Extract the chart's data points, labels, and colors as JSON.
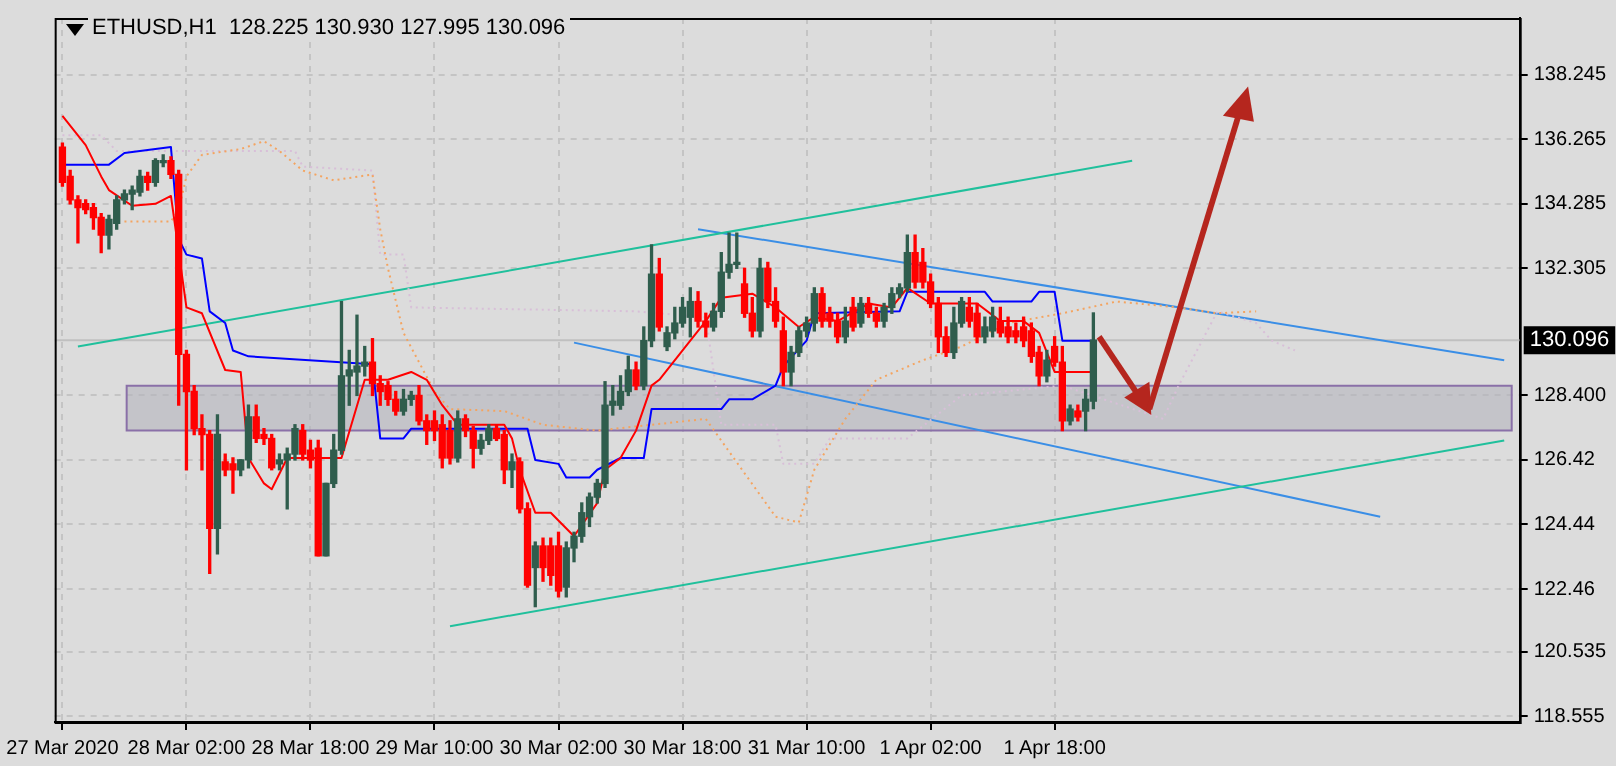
{
  "chart_data": {
    "type": "candlestick",
    "title": "ETHUSD,H1  128.225 130.930 127.995 130.096",
    "x": [
      "2020-03-27T10:00",
      "2020-03-27T11:00",
      "2020-03-27T12:00",
      "2020-03-27T13:00",
      "2020-03-27T14:00",
      "2020-03-27T15:00",
      "2020-03-27T16:00",
      "2020-03-27T17:00",
      "2020-03-27T18:00",
      "2020-03-27T19:00",
      "2020-03-27T20:00",
      "2020-03-27T21:00",
      "2020-03-27T22:00",
      "2020-03-27T23:00",
      "2020-03-28T00:00",
      "2020-03-28T01:00",
      "2020-03-28T02:00",
      "2020-03-28T03:00",
      "2020-03-28T04:00",
      "2020-03-28T05:00",
      "2020-03-28T06:00",
      "2020-03-28T07:00",
      "2020-03-28T08:00",
      "2020-03-28T09:00",
      "2020-03-28T10:00",
      "2020-03-28T11:00",
      "2020-03-28T12:00",
      "2020-03-28T13:00",
      "2020-03-28T14:00",
      "2020-03-28T15:00",
      "2020-03-28T16:00",
      "2020-03-28T17:00",
      "2020-03-28T18:00",
      "2020-03-28T19:00",
      "2020-03-28T20:00",
      "2020-03-28T21:00",
      "2020-03-28T22:00",
      "2020-03-28T23:00",
      "2020-03-29T00:00",
      "2020-03-29T01:00",
      "2020-03-29T02:00",
      "2020-03-29T03:00",
      "2020-03-29T04:00",
      "2020-03-29T05:00",
      "2020-03-29T06:00",
      "2020-03-29T07:00",
      "2020-03-29T08:00",
      "2020-03-29T09:00",
      "2020-03-29T10:00",
      "2020-03-29T11:00",
      "2020-03-29T12:00",
      "2020-03-29T13:00",
      "2020-03-29T14:00",
      "2020-03-29T15:00",
      "2020-03-29T16:00",
      "2020-03-29T17:00",
      "2020-03-29T18:00",
      "2020-03-29T19:00",
      "2020-03-29T20:00",
      "2020-03-29T21:00",
      "2020-03-29T22:00",
      "2020-03-29T23:00",
      "2020-03-30T00:00",
      "2020-03-30T01:00",
      "2020-03-30T02:00",
      "2020-03-30T03:00",
      "2020-03-30T04:00",
      "2020-03-30T05:00",
      "2020-03-30T06:00",
      "2020-03-30T07:00",
      "2020-03-30T08:00",
      "2020-03-30T09:00",
      "2020-03-30T10:00",
      "2020-03-30T11:00",
      "2020-03-30T12:00",
      "2020-03-30T13:00",
      "2020-03-30T14:00",
      "2020-03-30T15:00",
      "2020-03-30T16:00",
      "2020-03-30T17:00",
      "2020-03-30T18:00",
      "2020-03-30T19:00",
      "2020-03-30T20:00",
      "2020-03-30T21:00",
      "2020-03-30T22:00",
      "2020-03-30T23:00",
      "2020-03-31T00:00",
      "2020-03-31T01:00",
      "2020-03-31T02:00",
      "2020-03-31T03:00",
      "2020-03-31T04:00",
      "2020-03-31T05:00",
      "2020-03-31T06:00",
      "2020-03-31T07:00",
      "2020-03-31T08:00",
      "2020-03-31T09:00",
      "2020-03-31T10:00",
      "2020-03-31T11:00",
      "2020-03-31T12:00",
      "2020-03-31T13:00",
      "2020-03-31T14:00",
      "2020-03-31T15:00",
      "2020-03-31T16:00",
      "2020-03-31T17:00",
      "2020-03-31T18:00",
      "2020-03-31T19:00",
      "2020-03-31T20:00",
      "2020-03-31T21:00",
      "2020-03-31T22:00",
      "2020-03-31T23:00",
      "2020-04-01T00:00",
      "2020-04-01T01:00",
      "2020-04-01T02:00",
      "2020-04-01T03:00",
      "2020-04-01T04:00",
      "2020-04-01T05:00",
      "2020-04-01T06:00",
      "2020-04-01T07:00",
      "2020-04-01T08:00",
      "2020-04-01T09:00",
      "2020-04-01T10:00",
      "2020-04-01T11:00",
      "2020-04-01T12:00",
      "2020-04-01T13:00",
      "2020-04-01T14:00",
      "2020-04-01T15:00",
      "2020-04-01T16:00",
      "2020-04-01T17:00",
      "2020-04-01T18:00",
      "2020-04-01T19:00",
      "2020-04-01T20:00",
      "2020-04-01T21:00",
      "2020-04-01T22:00",
      "2020-04-01T23:00"
    ],
    "ohlc": [
      [
        136.02,
        136.14,
        134.82,
        134.94
      ],
      [
        135.12,
        135.3,
        134.28,
        134.4
      ],
      [
        134.4,
        134.52,
        133.08,
        134.16
      ],
      [
        134.28,
        134.4,
        133.98,
        134.1
      ],
      [
        134.16,
        134.28,
        133.5,
        133.86
      ],
      [
        133.86,
        133.98,
        132.78,
        133.32
      ],
      [
        133.32,
        133.92,
        132.9,
        133.8
      ],
      [
        133.68,
        134.52,
        133.5,
        134.4
      ],
      [
        134.4,
        134.7,
        134.28,
        134.58
      ],
      [
        134.58,
        134.82,
        134.1,
        134.7
      ],
      [
        134.64,
        135.3,
        134.52,
        135.12
      ],
      [
        135.12,
        135.24,
        134.7,
        134.94
      ],
      [
        134.94,
        135.66,
        134.82,
        135.6
      ],
      [
        135.54,
        135.78,
        135.42,
        135.6
      ],
      [
        135.6,
        135.72,
        135.06,
        135.18
      ],
      [
        135.18,
        135.3,
        128.1,
        129.66
      ],
      [
        129.66,
        129.78,
        126.12,
        128.52
      ],
      [
        128.52,
        128.7,
        127.2,
        127.38
      ],
      [
        127.38,
        127.8,
        126.12,
        127.2
      ],
      [
        127.2,
        127.32,
        122.94,
        124.32
      ],
      [
        124.32,
        127.8,
        123.54,
        127.2
      ],
      [
        126.36,
        126.6,
        125.94,
        126.12
      ],
      [
        126.3,
        126.48,
        125.4,
        126.12
      ],
      [
        126.12,
        126.42,
        125.94,
        126.42
      ],
      [
        126.42,
        128.1,
        126.18,
        127.74
      ],
      [
        127.74,
        128.1,
        126.96,
        127.08
      ],
      [
        127.2,
        127.38,
        126.9,
        127.08
      ],
      [
        127.08,
        127.2,
        126.12,
        126.18
      ],
      [
        126.3,
        126.6,
        126.12,
        126.42
      ],
      [
        126.42,
        126.78,
        124.92,
        126.6
      ],
      [
        126.6,
        127.5,
        126.42,
        127.38
      ],
      [
        127.32,
        127.5,
        126.42,
        126.6
      ],
      [
        126.72,
        127.02,
        126.18,
        126.42
      ],
      [
        126.78,
        127.02,
        123.48,
        123.48
      ],
      [
        123.48,
        125.7,
        123.48,
        125.7
      ],
      [
        125.7,
        127.2,
        125.58,
        126.72
      ],
      [
        126.72,
        131.28,
        126.6,
        129.0
      ],
      [
        129.0,
        129.78,
        128.1,
        129.18
      ],
      [
        129.12,
        130.86,
        128.4,
        129.3
      ],
      [
        129.3,
        129.9,
        129.0,
        129.42
      ],
      [
        129.42,
        130.14,
        128.4,
        128.76
      ],
      [
        128.76,
        129.0,
        128.1,
        128.52
      ],
      [
        128.7,
        128.82,
        128.1,
        128.28
      ],
      [
        128.28,
        128.52,
        127.8,
        127.92
      ],
      [
        127.92,
        128.58,
        127.8,
        128.28
      ],
      [
        128.28,
        128.52,
        128.1,
        128.4
      ],
      [
        128.4,
        128.7,
        127.5,
        127.62
      ],
      [
        127.62,
        127.8,
        126.9,
        127.32
      ],
      [
        127.62,
        127.92,
        127.02,
        127.32
      ],
      [
        127.5,
        127.8,
        126.18,
        126.48
      ],
      [
        127.32,
        127.62,
        126.3,
        126.48
      ],
      [
        126.48,
        127.92,
        126.36,
        127.68
      ],
      [
        127.68,
        127.8,
        127.14,
        127.32
      ],
      [
        127.32,
        127.44,
        126.18,
        126.78
      ],
      [
        126.78,
        127.2,
        126.6,
        127.02
      ],
      [
        127.02,
        127.5,
        126.9,
        127.38
      ],
      [
        127.38,
        127.5,
        127.02,
        127.08
      ],
      [
        127.2,
        127.32,
        125.7,
        126.12
      ],
      [
        126.12,
        126.6,
        125.58,
        126.36
      ],
      [
        126.36,
        126.48,
        124.8,
        124.92
      ],
      [
        124.92,
        125.1,
        122.52,
        122.58
      ],
      [
        123.12,
        123.9,
        121.92,
        123.78
      ],
      [
        123.78,
        124.02,
        122.7,
        123.12
      ],
      [
        123.78,
        124.02,
        122.58,
        122.88
      ],
      [
        123.78,
        124.2,
        122.22,
        122.4
      ],
      [
        122.52,
        123.9,
        122.22,
        123.72
      ],
      [
        123.72,
        124.2,
        123.3,
        124.08
      ],
      [
        124.08,
        125.1,
        123.9,
        124.8
      ],
      [
        124.68,
        125.4,
        124.38,
        125.28
      ],
      [
        125.28,
        125.82,
        125.1,
        125.7
      ],
      [
        125.7,
        128.82,
        125.58,
        128.1
      ],
      [
        128.1,
        128.7,
        127.8,
        128.22
      ],
      [
        128.1,
        129.0,
        127.98,
        128.52
      ],
      [
        128.52,
        129.6,
        128.4,
        129.18
      ],
      [
        129.18,
        129.42,
        128.58,
        128.7
      ],
      [
        128.7,
        130.5,
        128.58,
        130.08
      ],
      [
        130.08,
        133.02,
        129.9,
        132.12
      ],
      [
        132.12,
        132.6,
        130.38,
        130.5
      ],
      [
        129.9,
        130.5,
        129.78,
        130.32
      ],
      [
        130.32,
        131.1,
        130.14,
        130.62
      ],
      [
        130.62,
        131.4,
        130.5,
        131.1
      ],
      [
        130.8,
        131.7,
        130.2,
        131.28
      ],
      [
        131.28,
        131.58,
        130.5,
        130.68
      ],
      [
        130.68,
        130.92,
        130.2,
        130.5
      ],
      [
        130.5,
        131.22,
        130.38,
        130.98
      ],
      [
        130.98,
        132.78,
        130.8,
        132.18
      ],
      [
        132.18,
        133.38,
        132.0,
        132.42
      ],
      [
        132.42,
        133.38,
        132.3,
        132.48
      ],
      [
        131.82,
        132.3,
        130.8,
        130.92
      ],
      [
        130.92,
        131.4,
        130.2,
        130.38
      ],
      [
        130.38,
        132.6,
        130.2,
        132.3
      ],
      [
        132.3,
        132.48,
        131.1,
        131.28
      ],
      [
        131.28,
        131.7,
        130.5,
        130.68
      ],
      [
        130.38,
        130.8,
        128.7,
        129.12
      ],
      [
        129.12,
        129.9,
        128.7,
        129.72
      ],
      [
        129.72,
        130.5,
        129.6,
        130.38
      ],
      [
        130.38,
        130.8,
        130.2,
        130.62
      ],
      [
        130.62,
        131.7,
        130.38,
        131.52
      ],
      [
        131.52,
        131.7,
        130.5,
        130.68
      ],
      [
        130.92,
        131.1,
        130.5,
        130.68
      ],
      [
        130.68,
        130.92,
        130.02,
        130.2
      ],
      [
        130.2,
        131.1,
        130.02,
        130.68
      ],
      [
        131.1,
        131.4,
        130.38,
        130.5
      ],
      [
        130.62,
        131.4,
        130.5,
        131.22
      ],
      [
        131.22,
        131.4,
        130.8,
        130.92
      ],
      [
        130.92,
        131.1,
        130.5,
        130.68
      ],
      [
        130.68,
        131.22,
        130.5,
        131.1
      ],
      [
        131.1,
        131.7,
        130.92,
        131.52
      ],
      [
        131.52,
        131.82,
        131.4,
        131.7
      ],
      [
        131.7,
        133.32,
        131.58,
        132.78
      ],
      [
        132.78,
        133.32,
        131.7,
        131.88
      ],
      [
        132.48,
        132.9,
        131.7,
        131.88
      ],
      [
        131.88,
        132.12,
        131.1,
        131.22
      ],
      [
        131.22,
        131.4,
        129.72,
        130.2
      ],
      [
        130.2,
        130.5,
        129.6,
        129.72
      ],
      [
        129.72,
        131.1,
        129.54,
        130.62
      ],
      [
        130.62,
        131.4,
        130.5,
        131.28
      ],
      [
        131.1,
        131.4,
        130.5,
        130.68
      ],
      [
        130.92,
        131.22,
        130.02,
        130.2
      ],
      [
        130.2,
        130.8,
        130.02,
        130.5
      ],
      [
        130.38,
        131.1,
        130.2,
        130.8
      ],
      [
        130.68,
        131.1,
        130.2,
        130.32
      ],
      [
        130.5,
        130.8,
        130.02,
        130.2
      ],
      [
        130.38,
        130.62,
        130.02,
        130.2
      ],
      [
        130.5,
        130.8,
        129.9,
        130.08
      ],
      [
        130.38,
        130.62,
        129.42,
        129.6
      ],
      [
        129.72,
        129.9,
        128.7,
        129.0
      ],
      [
        129.0,
        129.78,
        128.82,
        129.48
      ],
      [
        129.9,
        130.2,
        129.3,
        129.42
      ],
      [
        129.42,
        129.9,
        127.32,
        127.62
      ],
      [
        127.62,
        128.1,
        127.5,
        127.98
      ],
      [
        127.92,
        128.1,
        127.62,
        127.74
      ],
      [
        127.92,
        128.58,
        127.32,
        128.28
      ],
      [
        128.225,
        130.93,
        127.995,
        130.096
      ]
    ],
    "colors": [
      "#ff0000",
      "#ff0000",
      "#ff0000",
      "#ff0000",
      "#ff0000",
      "#ff0000",
      "#2f5d4d",
      "#2f5d4d",
      "#2f5d4d",
      "#2f5d4d",
      "#2f5d4d",
      "#ff0000",
      "#2f5d4d",
      "#2f5d4d",
      "#ff0000",
      "#ff0000",
      "#ff0000",
      "#ff0000",
      "#ff0000",
      "#ff0000",
      "#2f5d4d",
      "#ff0000",
      "#ff0000",
      "#2f5d4d",
      "#2f5d4d",
      "#ff0000",
      "#ff0000",
      "#ff0000",
      "#2f5d4d",
      "#2f5d4d",
      "#2f5d4d",
      "#ff0000",
      "#ff0000",
      "#ff0000",
      "#2f5d4d",
      "#2f5d4d",
      "#2f5d4d",
      "#2f5d4d",
      "#2f5d4d",
      "#2f5d4d",
      "#ff0000",
      "#ff0000",
      "#ff0000",
      "#ff0000",
      "#2f5d4d",
      "#2f5d4d",
      "#ff0000",
      "#ff0000",
      "#ff0000",
      "#ff0000",
      "#ff0000",
      "#2f5d4d",
      "#ff0000",
      "#ff0000",
      "#2f5d4d",
      "#2f5d4d",
      "#ff0000",
      "#ff0000",
      "#2f5d4d",
      "#ff0000",
      "#ff0000",
      "#2f5d4d",
      "#ff0000",
      "#ff0000",
      "#ff0000",
      "#2f5d4d",
      "#2f5d4d",
      "#2f5d4d",
      "#2f5d4d",
      "#2f5d4d",
      "#2f5d4d",
      "#2f5d4d",
      "#2f5d4d",
      "#2f5d4d",
      "#ff0000",
      "#2f5d4d",
      "#2f5d4d",
      "#ff0000",
      "#2f5d4d",
      "#2f5d4d",
      "#2f5d4d",
      "#2f5d4d",
      "#ff0000",
      "#ff0000",
      "#2f5d4d",
      "#2f5d4d",
      "#2f5d4d",
      "#2f5d4d",
      "#ff0000",
      "#ff0000",
      "#2f5d4d",
      "#ff0000",
      "#ff0000",
      "#ff0000",
      "#2f5d4d",
      "#2f5d4d",
      "#2f5d4d",
      "#2f5d4d",
      "#ff0000",
      "#ff0000",
      "#ff0000",
      "#2f5d4d",
      "#ff0000",
      "#2f5d4d",
      "#ff0000",
      "#ff0000",
      "#2f5d4d",
      "#2f5d4d",
      "#2f5d4d",
      "#2f5d4d",
      "#ff0000",
      "#ff0000",
      "#ff0000",
      "#ff0000",
      "#ff0000",
      "#2f5d4d",
      "#2f5d4d",
      "#ff0000",
      "#ff0000",
      "#2f5d4d",
      "#2f5d4d",
      "#ff0000",
      "#ff0000",
      "#ff0000",
      "#ff0000",
      "#ff0000",
      "#ff0000",
      "#2f5d4d",
      "#ff0000",
      "#ff0000",
      "#2f5d4d",
      "#ff0000",
      "#2f5d4d",
      "#2f5d4d"
    ],
    "series": [
      {
        "type": "line",
        "color": "#ff0000",
        "line_style": "solid",
        "x": [
          "2020-03-27T10:00",
          "2020-03-27T13:00",
          "2020-03-27T15:00",
          "2020-03-27T16:00",
          "2020-03-27T19:00",
          "2020-03-27T22:00",
          "2020-03-28T00:00",
          "2020-03-28T02:00",
          "2020-03-28T04:00",
          "2020-03-28T07:00",
          "2020-03-28T09:00",
          "2020-03-28T10:00",
          "2020-03-28T12:00",
          "2020-03-28T13:00",
          "2020-03-28T15:00",
          "2020-03-28T22:00",
          "2020-03-29T01:00",
          "2020-03-29T04:00",
          "2020-03-29T07:00",
          "2020-03-29T09:00",
          "2020-03-29T11:00",
          "2020-03-29T13:00",
          "2020-03-29T19:00",
          "2020-03-29T20:00",
          "2020-03-29T21:00",
          "2020-03-29T23:00",
          "2020-03-30T01:00",
          "2020-03-30T04:00",
          "2020-03-30T07:00",
          "2020-03-30T08:00",
          "2020-03-30T10:00",
          "2020-03-30T12:00",
          "2020-03-30T14:00",
          "2020-03-30T15:00",
          "2020-03-30T19:00",
          "2020-03-30T21:00",
          "2020-03-30T23:00",
          "2020-03-31T03:00",
          "2020-03-31T06:00",
          "2020-03-31T09:00",
          "2020-03-31T11:00",
          "2020-03-31T14:00",
          "2020-03-31T18:00",
          "2020-03-31T21:00",
          "2020-03-31T23:00",
          "2020-04-01T02:00",
          "2020-04-01T08:00",
          "2020-04-01T11:00",
          "2020-04-01T14:00",
          "2020-04-01T16:00",
          "2020-04-01T18:00",
          "2020-04-01T23:00"
        ],
        "values": [
          136.98,
          136.08,
          135.12,
          134.7,
          134.22,
          134.28,
          134.52,
          131.1,
          130.92,
          129.18,
          129.12,
          126.48,
          125.7,
          125.52,
          126.48,
          126.48,
          128.88,
          128.88,
          129.12,
          128.88,
          128.1,
          127.5,
          127.5,
          127.08,
          126.12,
          124.8,
          124.8,
          124.08,
          125.1,
          126.12,
          126.48,
          127.32,
          128.7,
          128.88,
          130.08,
          130.68,
          131.4,
          131.52,
          131.1,
          130.5,
          130.8,
          130.68,
          131.22,
          131.1,
          131.7,
          131.22,
          131.22,
          130.68,
          130.68,
          130.32,
          129.12,
          129.12
        ]
      },
      {
        "type": "line",
        "color": "#0000ff",
        "line_style": "solid",
        "x": [
          "2020-03-27T10:00",
          "2020-03-27T16:00",
          "2020-03-27T18:00",
          "2020-03-28T00:00",
          "2020-03-28T01:00",
          "2020-03-28T02:00",
          "2020-03-28T04:00",
          "2020-03-28T05:00",
          "2020-03-28T07:00",
          "2020-03-28T08:00",
          "2020-03-28T10:00",
          "2020-03-29T02:00",
          "2020-03-29T03:00",
          "2020-03-29T06:00",
          "2020-03-29T07:00",
          "2020-03-29T22:00",
          "2020-03-29T23:00",
          "2020-03-30T02:00",
          "2020-03-30T03:00",
          "2020-03-30T06:00",
          "2020-03-30T07:00",
          "2020-03-30T10:00",
          "2020-03-30T13:00",
          "2020-03-30T14:00",
          "2020-03-30T23:00",
          "2020-03-31T00:00",
          "2020-03-31T03:00",
          "2020-03-31T06:00",
          "2020-03-31T07:00",
          "2020-03-31T10:00",
          "2020-03-31T11:00",
          "2020-03-31T22:00",
          "2020-03-31T23:00",
          "2020-04-01T09:00",
          "2020-04-01T10:00",
          "2020-04-01T15:00",
          "2020-04-01T16:00",
          "2020-04-01T18:00",
          "2020-04-01T19:00",
          "2020-04-01T23:00"
        ],
        "values": [
          135.48,
          135.48,
          135.84,
          136.02,
          133.2,
          132.72,
          132.6,
          130.98,
          130.62,
          129.78,
          129.6,
          129.36,
          127.08,
          127.08,
          127.38,
          127.38,
          126.42,
          126.3,
          125.88,
          125.88,
          126.12,
          126.48,
          126.48,
          127.98,
          127.98,
          128.28,
          128.28,
          128.7,
          129.3,
          130.08,
          130.92,
          130.98,
          131.58,
          131.58,
          131.28,
          131.28,
          131.58,
          131.58,
          130.08,
          130.08
        ]
      },
      {
        "type": "line",
        "color": "#f4a460",
        "line_style": "dotted",
        "x": [
          "2020-03-27T18:00",
          "2020-03-28T00:00",
          "2020-03-28T01:00",
          "2020-03-28T02:00",
          "2020-03-28T04:00",
          "2020-03-28T09:00",
          "2020-03-28T12:00",
          "2020-03-28T14:00",
          "2020-03-28T17:00",
          "2020-03-28T21:00",
          "2020-03-29T02:00",
          "2020-03-29T03:00",
          "2020-03-29T04:00",
          "2020-03-29T06:00",
          "2020-03-29T10:00",
          "2020-03-29T12:00",
          "2020-03-29T19:00",
          "2020-03-30T00:00",
          "2020-03-30T07:00",
          "2020-03-30T21:00",
          "2020-03-31T06:00",
          "2020-03-31T09:00",
          "2020-03-31T11:00",
          "2020-03-31T15:00",
          "2020-03-31T19:00",
          "2020-04-01T01:00",
          "2020-04-01T06:00",
          "2020-04-01T12:00",
          "2020-04-01T19:00",
          "2020-04-02T02:00",
          "2020-04-02T10:00",
          "2020-04-02T15:00",
          "2020-04-02T20:00"
        ],
        "values": [
          133.74,
          133.74,
          134.1,
          135.12,
          135.78,
          135.96,
          136.2,
          135.9,
          135.3,
          135.0,
          135.18,
          133.5,
          132.3,
          130.32,
          128.52,
          127.98,
          127.92,
          127.5,
          127.32,
          127.68,
          124.68,
          124.5,
          126.12,
          127.68,
          128.88,
          129.48,
          129.9,
          130.62,
          130.92,
          131.28,
          131.1,
          130.92,
          130.98
        ]
      },
      {
        "type": "line",
        "color": "#d8bfd8",
        "line_style": "dotted",
        "x": [
          "2020-03-27T10:00",
          "2020-03-27T15:00",
          "2020-03-27T17:00",
          "2020-03-28T00:00",
          "2020-03-28T16:00",
          "2020-03-28T17:00",
          "2020-03-29T02:00",
          "2020-03-29T03:00",
          "2020-03-29T06:00",
          "2020-03-29T07:00",
          "2020-03-30T12:00",
          "2020-03-30T21:00",
          "2020-03-30T23:00",
          "2020-03-31T06:00",
          "2020-03-31T07:00",
          "2020-03-31T11:00",
          "2020-03-31T13:00",
          "2020-03-31T23:00",
          "2020-04-01T06:00",
          "2020-04-01T19:00",
          "2020-04-02T08:00",
          "2020-04-02T10:00",
          "2020-04-02T15:00",
          "2020-04-02T20:00",
          "2020-04-02T22:00",
          "2020-04-03T01:00"
        ],
        "values": [
          136.38,
          136.38,
          135.9,
          135.9,
          135.9,
          135.42,
          135.3,
          132.72,
          132.72,
          131.1,
          130.98,
          130.8,
          127.5,
          127.5,
          126.3,
          126.3,
          127.08,
          127.08,
          128.4,
          128.7,
          127.68,
          128.7,
          130.98,
          130.62,
          130.08,
          129.78
        ]
      },
      {
        "type": "line",
        "color": "#20c09c",
        "line_style": "solid",
        "x": [
          "2020-03-27T12:00",
          "2020-04-02T04:00"
        ],
        "values": [
          129.9,
          135.6
        ]
      },
      {
        "type": "line",
        "color": "#20c09c",
        "line_style": "solid",
        "x": [
          "2020-03-29T12:00",
          "2020-04-04T04:00"
        ],
        "values": [
          121.32,
          127.02
        ]
      },
      {
        "type": "line",
        "color": "#3a8ee6",
        "line_style": "solid",
        "x": [
          "2020-03-30T20:00",
          "2020-04-04T04:00"
        ],
        "values": [
          133.5,
          129.48
        ]
      },
      {
        "type": "line",
        "color": "#3a8ee6",
        "line_style": "solid",
        "x": [
          "2020-03-30T04:00",
          "2020-04-03T12:00"
        ],
        "values": [
          130.02,
          124.68
        ]
      }
    ],
    "bands": [
      {
        "axis": "y",
        "from": 127.32,
        "to": 128.7,
        "color": "#b4b4bc"
      }
    ],
    "ref_lines": [
      {
        "axis": "y",
        "value": 130.096,
        "label": "130.096",
        "color": "#c0c0c0"
      }
    ],
    "xlim": [
      "2020-03-27T09:00",
      "2020-04-04T06:00"
    ],
    "xticks": [
      {
        "value": "2020-03-27T10:00",
        "label": "27 Mar 2020"
      },
      {
        "value": "2020-03-28T02:00",
        "label": "28 Mar 02:00"
      },
      {
        "value": "2020-03-28T18:00",
        "label": "28 Mar 18:00"
      },
      {
        "value": "2020-03-29T10:00",
        "label": "29 Mar 10:00"
      },
      {
        "value": "2020-03-30T02:00",
        "label": "30 Mar 02:00"
      },
      {
        "value": "2020-03-30T18:00",
        "label": "30 Mar 18:00"
      },
      {
        "value": "2020-03-31T10:00",
        "label": "31 Mar 10:00"
      },
      {
        "value": "2020-04-01T02:00",
        "label": "1 Apr 02:00"
      },
      {
        "value": "2020-04-01T18:00",
        "label": "1 Apr 18:00"
      }
    ],
    "ylim": [
      118.38,
      139.98
    ],
    "yticks": [
      118.555,
      120.535,
      122.46,
      124.44,
      126.42,
      {
        "value": 128.4,
        "label": "128.400"
      },
      132.305,
      134.285,
      136.265,
      138.245
    ],
    "grid": true,
    "legend": false
  }
}
